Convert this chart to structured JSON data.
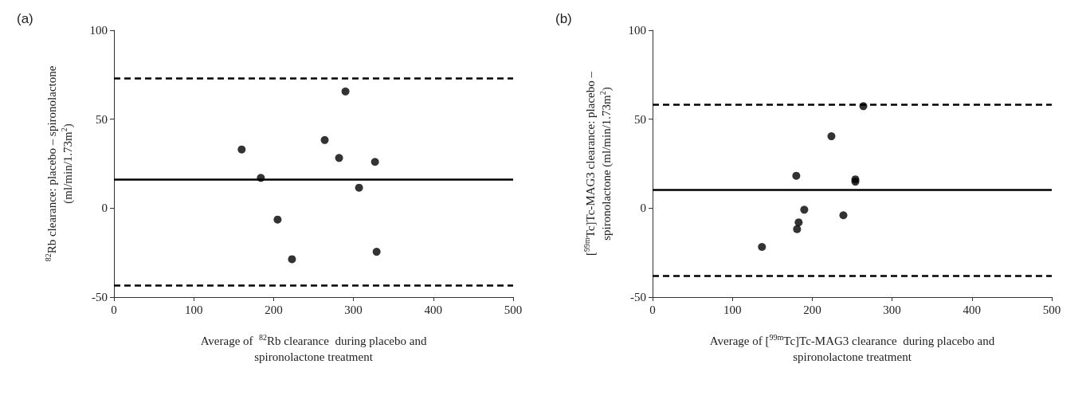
{
  "chart_data": [
    {
      "type": "scatter",
      "title": "(a)",
      "xlabel": "Average of  $^{82}$Rb clearance  during placebo and spironolactone treatment",
      "ylabel": "$^{82}$Rb clearance: placebo – spironolactone (ml/min/1.73m$^{2}$)",
      "x": [
        160,
        184,
        205,
        223,
        264,
        290,
        282,
        307,
        327,
        329
      ],
      "series": [
        {
          "color": "#000000",
          "values": [
            33,
            17,
            -6.4,
            -28.7,
            38.3,
            65.6,
            28.2,
            11.5,
            26,
            -24.5
          ]
        }
      ],
      "xlim": [
        0,
        500
      ],
      "xticks": [
        0,
        100,
        200,
        300,
        400,
        500
      ],
      "ylim": [
        -50,
        100
      ],
      "yticks": [
        -50,
        0,
        50,
        100
      ],
      "grid": false,
      "marker": "circle",
      "ref_lines": [
        {
          "axis": "y",
          "value": 73,
          "line_style": "dashed",
          "color": "#000000"
        },
        {
          "axis": "y",
          "value": 16.2,
          "line_style": "solid",
          "color": "#000000"
        },
        {
          "axis": "y",
          "value": -43.2,
          "line_style": "dashed",
          "color": "#000000"
        }
      ]
    },
    {
      "type": "scatter",
      "title": "(b)",
      "xlabel": "Average of [$^{99m}$Tc]Tc-MAG3 clearance  during placebo and spironolactone treatment",
      "ylabel": "[$^{99m}$Tc]Tc-MAG3 clearance: placebo – spironolactone (ml/min/1.73m$^{2}$)",
      "x": [
        264,
        224,
        180,
        254,
        254,
        190,
        239,
        183,
        181,
        137
      ],
      "series": [
        {
          "color": "#000000",
          "values": [
            57.3,
            40.4,
            18.2,
            16.2,
            14.9,
            -0.9,
            -4,
            -8,
            -11.8,
            -21.8
          ]
        }
      ],
      "xlim": [
        0,
        500
      ],
      "xticks": [
        0,
        100,
        200,
        300,
        400,
        500
      ],
      "ylim": [
        -50,
        100
      ],
      "yticks": [
        -50,
        0,
        50,
        100
      ],
      "grid": false,
      "marker": "circle",
      "ref_lines": [
        {
          "axis": "y",
          "value": 58.2,
          "line_style": "dashed",
          "color": "#000000"
        },
        {
          "axis": "y",
          "value": 10.2,
          "line_style": "solid",
          "color": "#000000"
        },
        {
          "axis": "y",
          "value": -38,
          "line_style": "dashed",
          "color": "#000000"
        }
      ]
    }
  ]
}
